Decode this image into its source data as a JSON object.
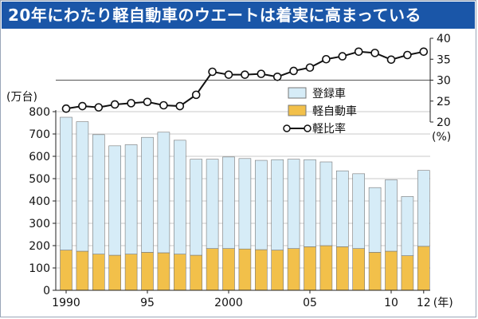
{
  "title": "20年にわたり軽自動車のウエートは着実に高まっている",
  "chart_data": {
    "type": "bar+line",
    "title": "20年にわたり軽自動車のウエートは着実に高まっている",
    "categories": [
      1990,
      1991,
      1992,
      1993,
      1994,
      1995,
      1996,
      1997,
      1998,
      1999,
      2000,
      2001,
      2002,
      2003,
      2004,
      2005,
      2006,
      2007,
      2008,
      2009,
      2010,
      2011,
      2012
    ],
    "x_tick_labels": [
      {
        "year": 1990,
        "label": "1990"
      },
      {
        "year": 1995,
        "label": "95"
      },
      {
        "year": 2000,
        "label": "2000"
      },
      {
        "year": 2005,
        "label": "05"
      },
      {
        "year": 2010,
        "label": "10"
      },
      {
        "year": 2012,
        "label": "12"
      }
    ],
    "x_unit": "(年)",
    "left_axis": {
      "unit": "(万台)",
      "ylim": [
        0,
        800
      ],
      "ticks": [
        0,
        100,
        200,
        300,
        400,
        500,
        600,
        700,
        800
      ]
    },
    "right_axis": {
      "unit": "(%)",
      "ylim": [
        20,
        40
      ],
      "ticks": [
        20,
        25,
        30,
        35,
        40
      ]
    },
    "series": [
      {
        "name": "登録車",
        "kind": "bar-stack-top",
        "color": "#d6ecf7",
        "values": [
          595,
          580,
          535,
          490,
          490,
          515,
          540,
          510,
          430,
          400,
          410,
          405,
          400,
          405,
          400,
          390,
          375,
          340,
          335,
          290,
          320,
          265,
          340
        ]
      },
      {
        "name": "軽自動車",
        "kind": "bar-stack-bottom",
        "color": "#f2c04a",
        "values": [
          180,
          175,
          162,
          157,
          162,
          170,
          168,
          162,
          157,
          187,
          187,
          185,
          182,
          180,
          187,
          195,
          200,
          195,
          187,
          170,
          175,
          155,
          197
        ]
      },
      {
        "name": "軽比率",
        "kind": "line",
        "axis": "right",
        "color": "#111111",
        "values": [
          23.2,
          23.8,
          23.5,
          24.2,
          24.5,
          24.8,
          24.0,
          23.8,
          26.5,
          32.0,
          31.3,
          31.3,
          31.5,
          30.8,
          32.2,
          33.0,
          35.0,
          35.7,
          36.8,
          36.5,
          34.9,
          36.0,
          36.8
        ]
      }
    ],
    "legend": {
      "position": "center-right",
      "items": [
        "登録車",
        "軽自動車",
        "軽比率"
      ]
    }
  }
}
